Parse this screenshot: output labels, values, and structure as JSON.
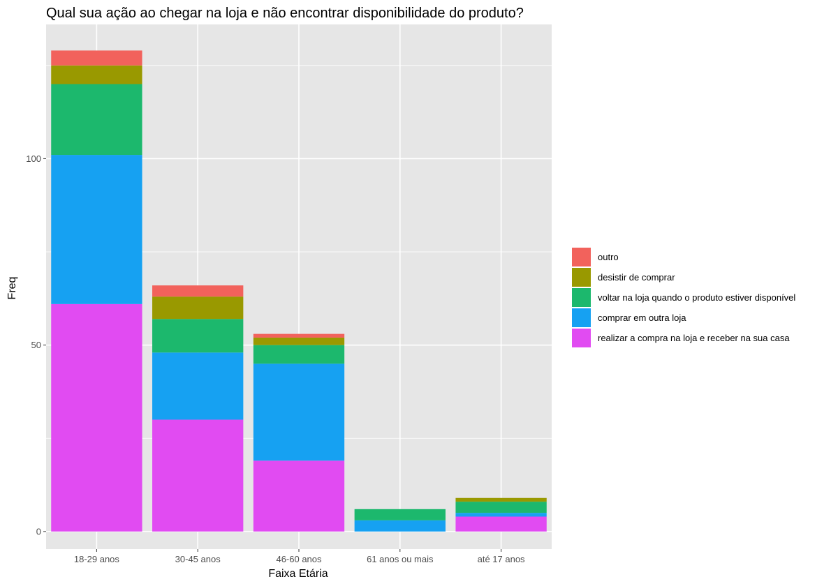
{
  "chart_data": {
    "type": "bar",
    "stacked": true,
    "title": "Qual sua ação ao chegar na loja e não encontrar disponibilidade do produto?",
    "xlabel": "Faixa Etária",
    "ylabel": "Freq",
    "ylim": [
      -4.7,
      136
    ],
    "yticks": [
      0,
      50,
      100
    ],
    "grid": true,
    "legend_position": "right",
    "categories": [
      "18-29 anos",
      "30-45 anos",
      "46-60 anos",
      "61 anos ou mais",
      "até 17 anos"
    ],
    "series": [
      {
        "name": "realizar a compra na loja e receber na sua casa",
        "color": "#E14BF2",
        "values": [
          61,
          30,
          19,
          0,
          4
        ]
      },
      {
        "name": "comprar em outra loja",
        "color": "#16A1F2",
        "values": [
          40,
          18,
          26,
          3,
          1
        ]
      },
      {
        "name": "voltar na loja quando o produto estiver disponível",
        "color": "#1CB86D",
        "values": [
          19,
          9,
          5,
          3,
          3
        ]
      },
      {
        "name": "desistir de comprar",
        "color": "#999900",
        "values": [
          5,
          6,
          2,
          0,
          1
        ]
      },
      {
        "name": "outro",
        "color": "#F2625C",
        "values": [
          4,
          3,
          1,
          0,
          0
        ]
      }
    ],
    "colors": {
      "panel": "#E6E6E6",
      "grid": "#FFFFFF"
    }
  }
}
